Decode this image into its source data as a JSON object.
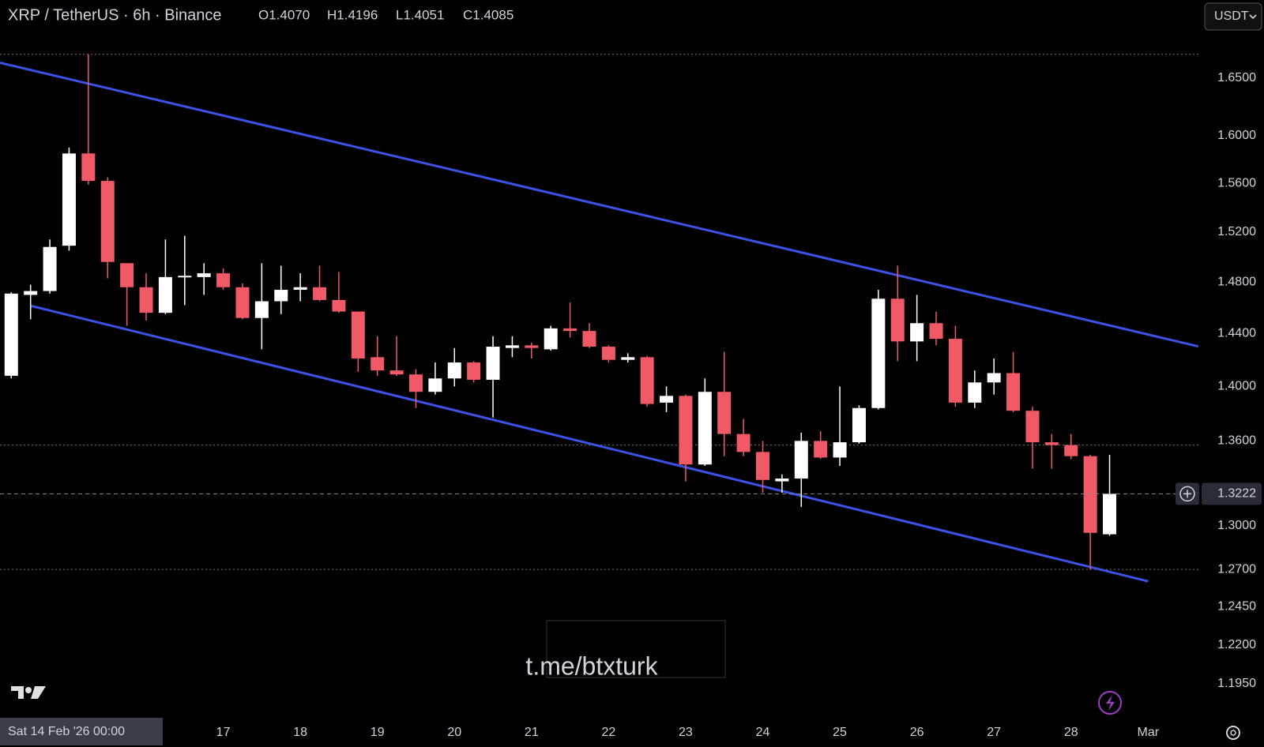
{
  "chart_data": {
    "type": "candlestick",
    "title": "XRP / TetherUS · 6h · Binance",
    "header_ohlc": [
      "O1.4070",
      "H1.4196",
      "L1.4051",
      "C1.4085"
    ],
    "currency_button": "USDT",
    "crosshair_label": "Sat 14 Feb '26 00:00",
    "watermark": "t.me/btxturk",
    "log_scale": true,
    "grid": false,
    "up_color": "#ffffff",
    "down_color": "#f05a67",
    "trend_line_color": "#3d52e6",
    "categories": [
      null,
      null,
      null,
      null,
      null,
      null,
      null,
      null,
      null,
      null,
      null,
      "17",
      null,
      null,
      null,
      "18",
      null,
      null,
      null,
      "19",
      null,
      null,
      null,
      "20",
      null,
      null,
      null,
      "21",
      null,
      null,
      null,
      "22",
      null,
      null,
      null,
      "23",
      null,
      null,
      null,
      "24",
      null,
      null,
      null,
      "25",
      null,
      null,
      null,
      "26",
      null,
      null,
      null,
      "27",
      null,
      null,
      null,
      "28",
      null,
      null,
      null,
      "Mar"
    ],
    "open": [
      1.408,
      1.47,
      1.473,
      1.509,
      1.585,
      1.562,
      1.495,
      1.476,
      1.456,
      1.484,
      1.484,
      1.487,
      1.476,
      1.452,
      1.465,
      1.474,
      1.476,
      1.466,
      1.457,
      1.422,
      1.412,
      1.409,
      1.396,
      1.406,
      1.418,
      1.405,
      1.429,
      1.431,
      1.428,
      1.444,
      1.442,
      1.43,
      1.42,
      1.422,
      1.388,
      1.393,
      1.343,
      1.396,
      1.365,
      1.352,
      1.331,
      1.333,
      1.36,
      1.348,
      1.359,
      1.384,
      1.467,
      1.434,
      1.448,
      1.436,
      1.388,
      1.403,
      1.41,
      1.382,
      1.359,
      1.357,
      1.349,
      1.294,
      null,
      null
    ],
    "high": [
      1.472,
      1.478,
      1.514,
      1.59,
      1.671,
      1.565,
      1.495,
      1.487,
      1.514,
      1.517,
      1.495,
      1.491,
      1.479,
      1.495,
      1.493,
      1.487,
      1.493,
      1.488,
      1.457,
      1.438,
      1.438,
      1.413,
      1.418,
      1.429,
      1.419,
      1.438,
      1.438,
      1.433,
      1.446,
      1.464,
      1.448,
      1.431,
      1.425,
      1.423,
      1.4,
      1.394,
      1.406,
      1.426,
      1.376,
      1.36,
      1.336,
      1.366,
      1.367,
      1.4,
      1.386,
      1.474,
      1.493,
      1.47,
      1.457,
      1.446,
      1.412,
      1.421,
      1.426,
      1.385,
      1.365,
      1.365,
      1.35,
      1.35,
      null,
      null
    ],
    "low": [
      1.406,
      1.451,
      1.471,
      1.505,
      1.559,
      1.483,
      1.446,
      1.45,
      1.455,
      1.462,
      1.47,
      1.474,
      1.451,
      1.428,
      1.455,
      1.465,
      1.465,
      1.456,
      1.411,
      1.408,
      1.408,
      1.384,
      1.394,
      1.4,
      1.403,
      1.377,
      1.422,
      1.421,
      1.427,
      1.437,
      1.429,
      1.418,
      1.418,
      1.385,
      1.381,
      1.331,
      1.342,
      1.349,
      1.349,
      1.323,
      1.323,
      1.313,
      1.347,
      1.342,
      1.358,
      1.383,
      1.419,
      1.419,
      1.431,
      1.385,
      1.384,
      1.394,
      1.381,
      1.34,
      1.34,
      1.347,
      1.27,
      1.293,
      null,
      null
    ],
    "close": [
      1.471,
      1.473,
      1.508,
      1.585,
      1.562,
      1.496,
      1.476,
      1.456,
      1.484,
      1.485,
      1.487,
      1.476,
      1.452,
      1.465,
      1.474,
      1.476,
      1.466,
      1.457,
      1.421,
      1.412,
      1.409,
      1.396,
      1.406,
      1.418,
      1.405,
      1.43,
      1.431,
      1.429,
      1.444,
      1.442,
      1.43,
      1.42,
      1.422,
      1.387,
      1.393,
      1.343,
      1.396,
      1.365,
      1.352,
      1.332,
      1.333,
      1.36,
      1.348,
      1.359,
      1.384,
      1.467,
      1.434,
      1.448,
      1.436,
      1.388,
      1.403,
      1.41,
      1.382,
      1.359,
      1.357,
      1.349,
      1.295,
      1.3222,
      null,
      null
    ],
    "ylim": [
      1.174,
      1.72
    ],
    "yticks": [
      {
        "value": 1.65,
        "label": "1.6500"
      },
      {
        "value": 1.6,
        "label": "1.6000"
      },
      {
        "value": 1.56,
        "label": "1.5600"
      },
      {
        "value": 1.52,
        "label": "1.5200"
      },
      {
        "value": 1.48,
        "label": "1.4800"
      },
      {
        "value": 1.44,
        "label": "1.4400"
      },
      {
        "value": 1.4,
        "label": "1.4000"
      },
      {
        "value": 1.36,
        "label": "1.3600"
      },
      {
        "value": 1.3,
        "label": "1.3000"
      },
      {
        "value": 1.27,
        "label": "1.2700"
      },
      {
        "value": 1.245,
        "label": "1.2450"
      },
      {
        "value": 1.22,
        "label": "1.2200"
      },
      {
        "value": 1.195,
        "label": "1.1950"
      }
    ],
    "last_price": 1.3222,
    "horizontal_lines": [
      1.671,
      1.357,
      1.27
    ],
    "trend_lines": [
      {
        "x": [
          -0.59,
          61.6
        ],
        "y": [
          1.6635,
          1.4302
        ]
      },
      {
        "x": [
          1.0,
          59.0
        ],
        "y": [
          1.4615,
          1.262
        ]
      }
    ]
  }
}
